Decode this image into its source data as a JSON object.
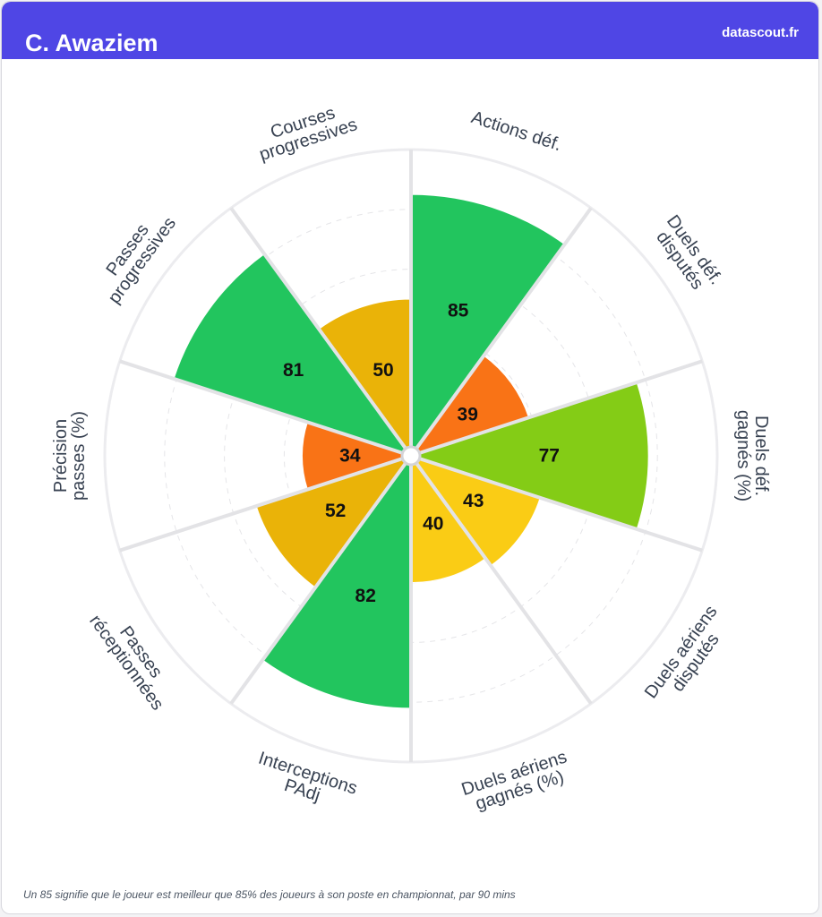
{
  "header": {
    "player_name": "C. Awaziem",
    "brand": "datascout.fr"
  },
  "footnote": "Un 85 signifie que le joueur est meilleur que 85% des joueurs à son poste en championnat, par 90 mins",
  "chart_data": {
    "type": "polar-bar",
    "range": [
      0,
      100
    ],
    "grid": true,
    "categories": [
      {
        "label": [
          "Actions déf."
        ],
        "value": 85,
        "color": "#22c55e"
      },
      {
        "label": [
          "Duels déf.",
          "disputés"
        ],
        "value": 39,
        "color": "#f97316"
      },
      {
        "label": [
          "Duels déf.",
          "gagnés (%)"
        ],
        "value": 77,
        "color": "#84cc16"
      },
      {
        "label": [
          "Duels aériens",
          "disputés"
        ],
        "value": 43,
        "color": "#facc15"
      },
      {
        "label": [
          "Duels aériens",
          "gagnés (%)"
        ],
        "value": 40,
        "color": "#facc15"
      },
      {
        "label": [
          "Interceptions",
          "PAdj"
        ],
        "value": 82,
        "color": "#22c55e"
      },
      {
        "label": [
          "Passes",
          "réceptionnées"
        ],
        "value": 52,
        "color": "#eab308"
      },
      {
        "label": [
          "Précision",
          "passes (%)"
        ],
        "value": 34,
        "color": "#f97316"
      },
      {
        "label": [
          "Passes",
          "progressives"
        ],
        "value": 81,
        "color": "#22c55e"
      },
      {
        "label": [
          "Courses",
          "progressives"
        ],
        "value": 50,
        "color": "#eab308"
      }
    ]
  }
}
